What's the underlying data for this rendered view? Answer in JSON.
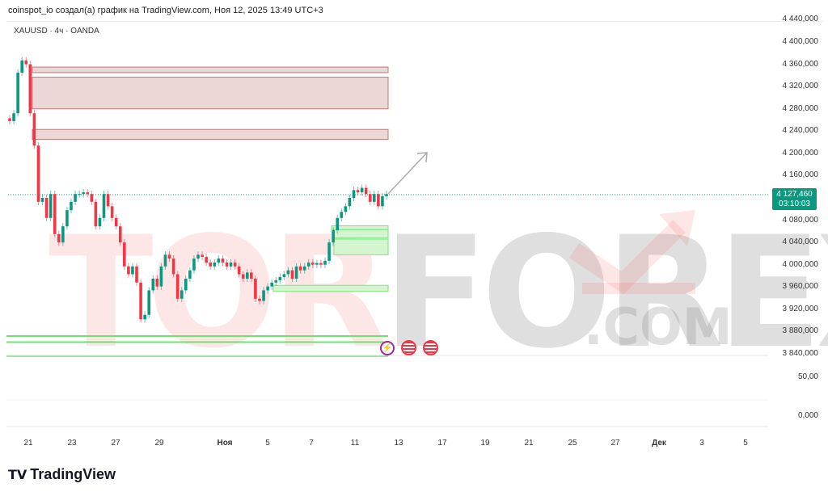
{
  "caption": "coinspot_io создал(а) график на TradingView.com, Ноя 12, 2025 13:49 UTC+3",
  "symbol": "XAUUSD · 4ч · OANDA",
  "price_axis": [
    "4 440,000",
    "4 400,000",
    "4 360,000",
    "4 320,000",
    "4 280,000",
    "4 240,000",
    "4 200,000",
    "4 160,000",
    "4 080,000",
    "4 040,000",
    "4 000,000",
    "3 960,000",
    "3 920,000",
    "3 880,000",
    "3 840,000"
  ],
  "indicator_axis": [
    "50,00",
    "0,000"
  ],
  "last_price": "4 127,460",
  "countdown": "03:10:03",
  "date_axis": [
    "21",
    "23",
    "27",
    "29",
    "Ноя",
    "5",
    "7",
    "11",
    "13",
    "17",
    "19",
    "21",
    "25",
    "27",
    "Дек",
    "3",
    "5"
  ],
  "watermark": {
    "main_gray": "FOREX",
    "main_red": "TOR",
    "suffix": ".COM"
  },
  "logo": "TradingView",
  "colors": {
    "up": "#089981",
    "down": "#f23645",
    "supply_zone": "#ecd7d7",
    "demand_zone": "#d4f5cf"
  },
  "chart_data": {
    "type": "candlestick",
    "symbol": "XAUUSD",
    "timeframe": "4h",
    "ylim": [
      3830,
      4450
    ],
    "closes": [
      4258,
      4272,
      4345,
      4367,
      4360,
      4272,
      4214,
      4113,
      4120,
      4084,
      4127,
      4055,
      4040,
      4069,
      4098,
      4113,
      4127,
      4127,
      4130,
      4127,
      4113,
      4069,
      4084,
      4127,
      4105,
      4084,
      4069,
      4040,
      3997,
      3983,
      3997,
      3968,
      3902,
      3910,
      3954,
      3975,
      3961,
      3997,
      4018,
      4011,
      3983,
      3939,
      3954,
      3975,
      3990,
      4011,
      4018,
      4014,
      4004,
      3997,
      4004,
      4011,
      4004,
      3997,
      4004,
      3997,
      3983,
      3975,
      3986,
      3975,
      3939,
      3935,
      3954,
      3961,
      3968,
      3972,
      3978,
      3983,
      3990,
      3975,
      3997,
      3990,
      3997,
      4004,
      4000,
      4003,
      4000,
      4007,
      4040,
      4062,
      4084,
      4095,
      4105,
      4120,
      4134,
      4130,
      4138,
      4127,
      4113,
      4127,
      4105,
      4123,
      4127
    ],
    "supply_zones": [
      [
        4345,
        4355
      ],
      [
        4280,
        4337
      ],
      [
        4225,
        4243
      ]
    ],
    "demand_zones": [
      [
        4063,
        4070
      ],
      [
        4048,
        4063
      ],
      [
        4018,
        4046
      ],
      [
        3952,
        3963
      ]
    ],
    "support_lines": [
      3872,
      3861,
      3836
    ],
    "current_price": 4127.46
  }
}
